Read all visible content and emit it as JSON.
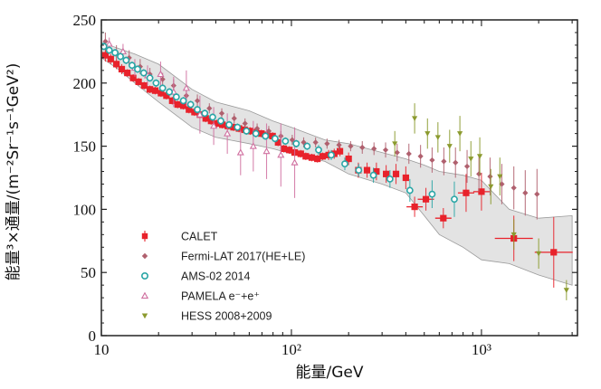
{
  "chart_data": {
    "type": "scatter",
    "xlabel": "能量/GeV",
    "ylabel": "能量³×通量/(m⁻²Sr⁻¹s⁻¹GeV²)",
    "x_scale": "log",
    "xlim": [
      10,
      3200
    ],
    "ylim": [
      0,
      250
    ],
    "x_ticks": [
      10,
      100,
      1000
    ],
    "x_tick_labels": [
      "10",
      "10²",
      "10³"
    ],
    "y_ticks": [
      0,
      50,
      100,
      150,
      200,
      250
    ],
    "y_tick_labels": [
      "0",
      "50",
      "100",
      "150",
      "200",
      "250"
    ],
    "legend_position": "lower-left",
    "band": {
      "x": [
        10,
        12,
        15,
        20,
        30,
        40,
        60,
        80,
        100,
        150,
        200,
        300,
        400,
        500,
        600,
        800,
        1000,
        1400,
        2000,
        3000
      ],
      "upper": [
        232,
        228,
        223,
        215,
        195,
        185,
        178,
        170,
        165,
        155,
        152,
        145,
        140,
        135,
        130,
        127,
        123,
        100,
        93,
        95
      ],
      "lower": [
        220,
        212,
        200,
        185,
        165,
        157,
        152,
        148,
        144,
        138,
        128,
        120,
        113,
        95,
        80,
        70,
        60,
        57,
        48,
        40
      ]
    },
    "series": [
      {
        "name": "CALET",
        "color": "#e8222b",
        "marker": "square",
        "x": [
          10.5,
          11.2,
          12.0,
          12.8,
          13.7,
          14.7,
          15.7,
          16.8,
          18.0,
          19.2,
          20.6,
          22.0,
          23.6,
          25.2,
          27.0,
          28.9,
          30.9,
          33.0,
          35.4,
          37.8,
          40.5,
          43.3,
          46.3,
          49.6,
          53.0,
          56.7,
          60.7,
          65.0,
          69.5,
          74.4,
          79.6,
          85.1,
          91.1,
          97.5,
          104,
          112,
          119,
          128,
          137,
          146,
          157,
          168,
          180,
          200,
          225,
          250,
          280,
          315,
          355,
          400,
          445,
          510,
          630,
          830,
          1000,
          1480,
          2400
        ],
        "y": [
          222,
          219,
          215,
          211,
          208,
          204,
          201,
          198,
          195,
          194,
          192,
          190,
          186,
          183,
          182,
          179,
          177,
          175,
          172,
          170,
          168,
          167,
          166,
          165,
          164,
          163,
          162,
          161,
          160,
          159,
          158,
          153,
          148,
          147,
          145,
          144,
          142,
          141,
          140,
          142,
          143,
          144,
          146,
          140,
          131,
          131,
          130,
          128,
          128,
          125,
          102,
          108,
          93,
          113,
          114,
          77,
          66
        ],
        "yerr": [
          5,
          4,
          4,
          4,
          3,
          3,
          3,
          3,
          3,
          3,
          3,
          3,
          3,
          3,
          3,
          3,
          3,
          3,
          3,
          3,
          3,
          3,
          3,
          3,
          3,
          3,
          3,
          3,
          3,
          3,
          3,
          3,
          3,
          3,
          3,
          3,
          3,
          3,
          3,
          3,
          4,
          4,
          4,
          5,
          6,
          6,
          7,
          7,
          8,
          9,
          8,
          9,
          8,
          15,
          15,
          18,
          28
        ]
      },
      {
        "name": "Fermi-LAT 2017(HE+LE)",
        "color": "#b0606e",
        "marker": "diamond",
        "x": [
          10.5,
          12,
          14,
          16,
          18,
          21,
          24,
          28,
          32,
          37,
          43,
          50,
          57,
          66,
          76,
          88,
          101,
          116,
          134,
          154,
          178,
          205,
          236,
          272,
          313,
          360,
          415,
          478,
          550,
          634,
          730,
          840,
          970,
          1110,
          1280,
          1480,
          1700,
          1960
        ],
        "y": [
          233,
          224,
          220,
          213,
          207,
          203,
          198,
          190,
          186,
          180,
          176,
          172,
          168,
          164,
          162,
          158,
          155,
          153,
          153,
          152,
          151,
          150,
          149,
          148,
          147,
          145,
          144,
          142,
          139,
          138,
          137,
          134,
          128,
          126,
          120,
          117,
          113,
          112
        ],
        "yerr": [
          7,
          6,
          6,
          6,
          5,
          5,
          5,
          5,
          5,
          4,
          4,
          4,
          4,
          4,
          4,
          4,
          4,
          4,
          4,
          4,
          4,
          4,
          5,
          5,
          6,
          7,
          8,
          9,
          10,
          11,
          12,
          13,
          14,
          15,
          16,
          17,
          18,
          20
        ]
      },
      {
        "name": "AMS-02 2014",
        "color": "#2aa6a6",
        "marker": "circle",
        "x": [
          10.3,
          11.0,
          11.8,
          12.6,
          13.5,
          14.5,
          15.5,
          16.7,
          18.0,
          19.4,
          21.0,
          22.8,
          24.8,
          27.0,
          29.5,
          32.0,
          35.0,
          38.5,
          42.5,
          47,
          52,
          58,
          65,
          73,
          82,
          93,
          106,
          121,
          139,
          162,
          191,
          226,
          270,
          330,
          420,
          550,
          720
        ],
        "y": [
          229,
          226,
          224,
          221,
          218,
          214,
          211,
          208,
          204,
          200,
          196,
          193,
          189,
          186,
          183,
          179,
          176,
          173,
          170,
          167,
          165,
          162,
          160,
          158,
          156,
          154,
          152,
          150,
          147,
          143,
          136,
          131,
          127,
          124,
          115,
          112,
          108
        ],
        "yerr": [
          3,
          3,
          3,
          3,
          3,
          3,
          3,
          3,
          3,
          3,
          3,
          3,
          3,
          3,
          3,
          3,
          3,
          3,
          3,
          3,
          3,
          3,
          3,
          3,
          3,
          3,
          3,
          3,
          4,
          4,
          5,
          5,
          6,
          7,
          9,
          11,
          14
        ]
      },
      {
        "name": "PAMELA e⁻+e⁺",
        "color": "#d070a0",
        "marker": "triangle",
        "x": [
          11,
          13,
          15,
          17.5,
          20.5,
          24,
          28,
          33,
          39,
          46,
          54,
          63,
          74,
          88,
          104
        ],
        "y": [
          231,
          225,
          212,
          206,
          207,
          193,
          196,
          175,
          166,
          160,
          145,
          150,
          146,
          143,
          137
        ],
        "yerr": [
          5,
          6,
          7,
          8,
          10,
          12,
          14,
          15,
          15,
          16,
          18,
          20,
          22,
          25,
          28
        ]
      },
      {
        "name": "HESS 2008+2009",
        "color": "#8b9a2e",
        "marker": "triangle-down",
        "x": [
          350,
          445,
          520,
          590,
          680,
          770,
          880,
          980,
          1120,
          1250,
          1480,
          2000,
          2800
        ],
        "y": [
          152,
          172,
          160,
          157,
          150,
          160,
          140,
          142,
          118,
          126,
          80,
          65,
          36
        ],
        "yerr": [
          10,
          12,
          12,
          12,
          13,
          14,
          14,
          15,
          14,
          15,
          12,
          12,
          8
        ]
      }
    ]
  }
}
